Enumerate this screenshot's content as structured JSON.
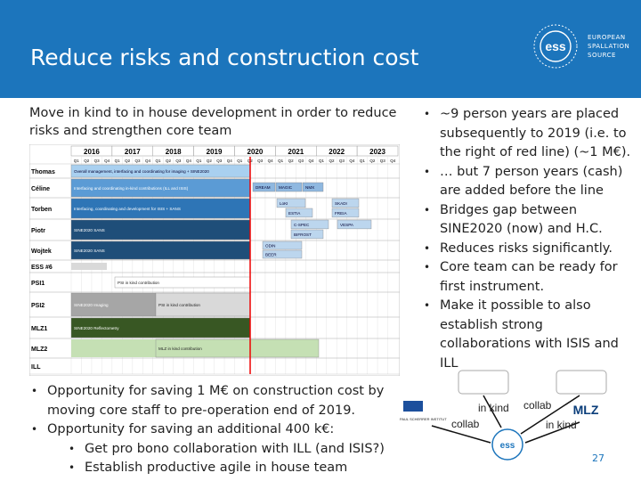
{
  "header": {
    "title": "Reduce risks and construction cost",
    "logo_text": [
      "EUROPEAN",
      "SPALLATION",
      "SOURCE"
    ],
    "logo_mark": "ess"
  },
  "intro": "Move in kind to in house development in order to reduce risks and strengthen core team",
  "chart": {
    "years": [
      "2016",
      "2017",
      "2018",
      "2019",
      "2020",
      "2021",
      "2022",
      "2023"
    ],
    "quarters": [
      "Q1",
      "Q2",
      "Q3",
      "Q4"
    ],
    "rows": [
      "Thomas",
      "Céline",
      "Torben",
      "Piotr",
      "Wojtek",
      "ESS #6",
      "PSI1",
      "PSI2",
      "MLZ1",
      "MLZ2",
      "ILL"
    ],
    "bars": [
      "Overall management, interfacing and coordinating for imaging + SINE2020",
      "Interfacing and coordinating in-kind contributions (ILL and ISIS)",
      "DREAM",
      "MAGIC",
      "NMX",
      "Interfacing, coordinating and development for ISIS + SANS",
      "LoKI",
      "ESTIA",
      "SKADI",
      "FREIA",
      "SINE2020 SANS",
      "C-SPEC",
      "VESPA",
      "BIFROST",
      "SINE2020 SANS",
      "ODIN",
      "BEER",
      "PSI in kind contribution",
      "SINE2020 Imaging",
      "PSI in kind contribution",
      "SINE2020 Reflectometry",
      "MLZ in kind contribution"
    ]
  },
  "right_bullets": [
    "~9 person years are placed subsequently to 2019 (i.e. to the right of red line) (~1 M€).",
    "… but 7 person years (cash) are added before the line",
    "Bridges gap between SINE2020 (now) and H.C.",
    "Reduces risks significantly.",
    "Core team can be ready for first instrument.",
    "Make it possible to also establish strong collaborations with ISIS and ILL"
  ],
  "bottom_bullets": [
    {
      "text": "Opportunity for saving 1 M€ on construction cost by moving core staff to pre-operation end of 2019."
    },
    {
      "text": "Opportunity for saving an additional 400 k€:",
      "sub": [
        "Get pro bono collaboration with ILL (and ISIS?)",
        "Establish productive agile in house team"
      ]
    }
  ],
  "diagram": {
    "labels": [
      "in kind",
      "collab",
      "collab",
      "in kind"
    ],
    "center": "ess",
    "left": "PAUL SCHERRER INSTITUT",
    "right": "MLZ"
  },
  "page_number": "27"
}
